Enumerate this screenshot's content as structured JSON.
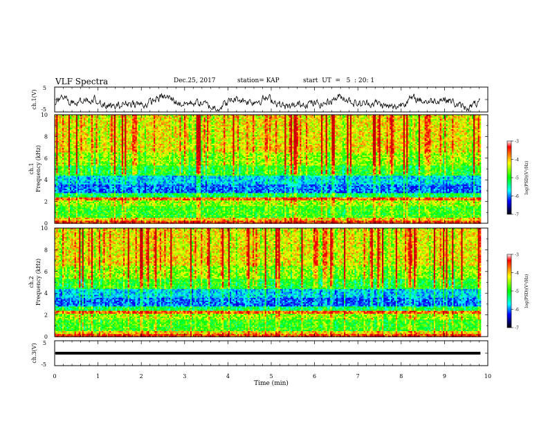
{
  "header": {
    "title": "VLF Spectra",
    "date": "Dec.25, 2017",
    "station": "station= KAP",
    "start": "start  UT  =   5  : 20: 1"
  },
  "chart_data": [
    {
      "type": "line",
      "panel": "ch1-waveform",
      "ylabel": "ch.1(V)",
      "ylim": [
        -5,
        5
      ],
      "yticks": [
        "5",
        "-5"
      ],
      "xlim": [
        0,
        10
      ],
      "color": "#000000"
    },
    {
      "type": "heatmap",
      "panel": "ch1-spectrogram",
      "ylabel_line1": "ch.1",
      "ylabel_line2": "Frequency (kHz)",
      "ylim": [
        0,
        10
      ],
      "yticks": [
        "0",
        "2",
        "4",
        "6",
        "8",
        "10"
      ],
      "xlim": [
        0,
        9.83
      ],
      "colorbar": {
        "label": "log(PSD)(V²/Hz)",
        "range": [
          -7,
          -3
        ],
        "ticks": [
          "-3",
          "-4",
          "-5",
          "-6",
          "-7"
        ]
      }
    },
    {
      "type": "heatmap",
      "panel": "ch2-spectrogram",
      "ylabel_line1": "ch.2",
      "ylabel_line2": "Frequency (kHz)",
      "ylim": [
        0,
        10
      ],
      "yticks": [
        "0",
        "2",
        "4",
        "6",
        "8",
        "10"
      ],
      "xlim": [
        0,
        9.83
      ],
      "colorbar": {
        "label": "log(PSD)(V²/Hz)",
        "range": [
          -7,
          -3
        ],
        "ticks": [
          "-3",
          "-4",
          "-5",
          "-6",
          "-7"
        ]
      }
    },
    {
      "type": "line",
      "panel": "ch3-waveform",
      "ylabel": "ch.3(V)",
      "ylim": [
        -5,
        5
      ],
      "yticks": [
        "5",
        "-5"
      ],
      "x": [
        0,
        9.83
      ],
      "y": [
        0,
        0
      ],
      "xlim": [
        0,
        10
      ],
      "color": "#000000"
    }
  ],
  "xaxis": {
    "label": "Time (min)",
    "ticks": [
      "0",
      "1",
      "2",
      "3",
      "4",
      "5",
      "6",
      "7",
      "8",
      "9",
      "10"
    ]
  }
}
